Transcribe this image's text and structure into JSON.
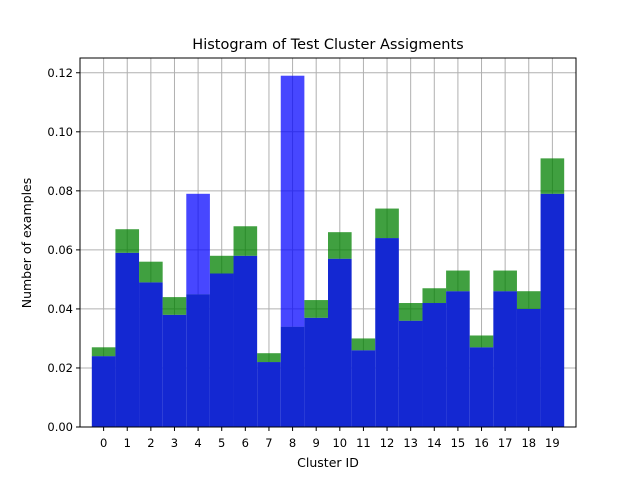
{
  "chart_data": {
    "type": "bar",
    "title": "Histogram of Test Cluster Assigments",
    "xlabel": "Cluster ID",
    "ylabel": "Number of examples",
    "categories": [
      "0",
      "1",
      "2",
      "3",
      "4",
      "5",
      "6",
      "7",
      "8",
      "9",
      "10",
      "11",
      "12",
      "13",
      "14",
      "15",
      "16",
      "17",
      "18",
      "19"
    ],
    "ylim": [
      0,
      0.125
    ],
    "yticks": [
      "0.00",
      "0.02",
      "0.04",
      "0.06",
      "0.08",
      "0.10",
      "0.12"
    ],
    "grid": true,
    "legend": "none",
    "series": [
      {
        "color": "#0000ff",
        "values": [
          0.024,
          0.059,
          0.049,
          0.038,
          0.079,
          0.052,
          0.058,
          0.022,
          0.119,
          0.037,
          0.057,
          0.026,
          0.064,
          0.036,
          0.042,
          0.046,
          0.027,
          0.046,
          0.04,
          0.079
        ]
      },
      {
        "color": "#008000",
        "values": [
          0.027,
          0.067,
          0.056,
          0.044,
          0.045,
          0.058,
          0.068,
          0.025,
          0.034,
          0.043,
          0.066,
          0.03,
          0.074,
          0.042,
          0.047,
          0.053,
          0.031,
          0.053,
          0.046,
          0.091
        ]
      }
    ],
    "overlap_color": "#1428d2"
  }
}
